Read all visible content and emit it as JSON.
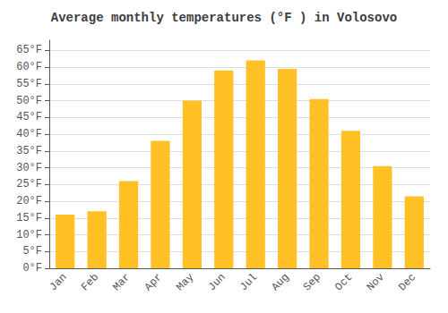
{
  "chart_data": {
    "type": "bar",
    "title": "Average monthly temperatures (°F ) in Volosovo",
    "categories": [
      "Jan",
      "Feb",
      "Mar",
      "Apr",
      "May",
      "Jun",
      "Jul",
      "Aug",
      "Sep",
      "Oct",
      "Nov",
      "Dec"
    ],
    "values": [
      16,
      17,
      26,
      38,
      50,
      59,
      62,
      59.5,
      50.5,
      41,
      30.5,
      21.5
    ],
    "color": "#FFC125",
    "ylim": [
      0,
      68
    ],
    "yticks": [
      {
        "value": 0,
        "label": "0°F"
      },
      {
        "value": 5,
        "label": "5°F"
      },
      {
        "value": 10,
        "label": "10°F"
      },
      {
        "value": 15,
        "label": "15°F"
      },
      {
        "value": 20,
        "label": "20°F"
      },
      {
        "value": 25,
        "label": "25°F"
      },
      {
        "value": 30,
        "label": "30°F"
      },
      {
        "value": 35,
        "label": "35°F"
      },
      {
        "value": 40,
        "label": "40°F"
      },
      {
        "value": 45,
        "label": "45°F"
      },
      {
        "value": 50,
        "label": "50°F"
      },
      {
        "value": 55,
        "label": "55°F"
      },
      {
        "value": 60,
        "label": "60°F"
      },
      {
        "value": 65,
        "label": "65°F"
      }
    ],
    "grid": true
  }
}
